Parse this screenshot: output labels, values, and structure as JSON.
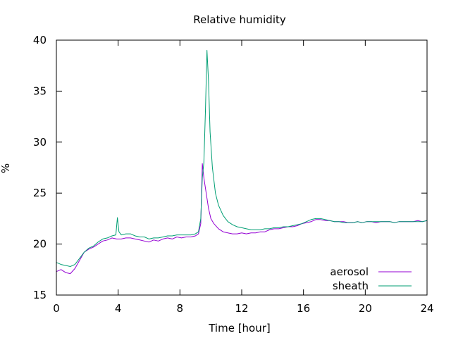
{
  "chart_data": {
    "type": "line",
    "title": "Relative humidity",
    "xlabel": "Time [hour]",
    "ylabel": "%",
    "xlim": [
      0,
      24
    ],
    "ylim": [
      15,
      40
    ],
    "xticks": [
      0,
      4,
      8,
      12,
      16,
      20,
      24
    ],
    "yticks": [
      15,
      20,
      25,
      30,
      35,
      40
    ],
    "grid": false,
    "legend_position": "bottom-right",
    "series": [
      {
        "name": "aerosol",
        "color": "#9400d3",
        "points": [
          [
            0.0,
            17.3
          ],
          [
            0.3,
            17.5
          ],
          [
            0.6,
            17.2
          ],
          [
            0.9,
            17.1
          ],
          [
            1.2,
            17.6
          ],
          [
            1.5,
            18.4
          ],
          [
            1.8,
            19.2
          ],
          [
            2.1,
            19.5
          ],
          [
            2.4,
            19.7
          ],
          [
            2.7,
            20.0
          ],
          [
            3.0,
            20.3
          ],
          [
            3.3,
            20.4
          ],
          [
            3.6,
            20.6
          ],
          [
            3.9,
            20.5
          ],
          [
            4.2,
            20.5
          ],
          [
            4.5,
            20.6
          ],
          [
            4.8,
            20.6
          ],
          [
            5.1,
            20.5
          ],
          [
            5.4,
            20.4
          ],
          [
            5.7,
            20.3
          ],
          [
            6.0,
            20.2
          ],
          [
            6.3,
            20.4
          ],
          [
            6.6,
            20.3
          ],
          [
            6.9,
            20.5
          ],
          [
            7.2,
            20.6
          ],
          [
            7.5,
            20.5
          ],
          [
            7.8,
            20.7
          ],
          [
            8.1,
            20.6
          ],
          [
            8.4,
            20.7
          ],
          [
            8.7,
            20.7
          ],
          [
            9.0,
            20.8
          ],
          [
            9.2,
            21.0
          ],
          [
            9.35,
            22.0
          ],
          [
            9.45,
            27.9
          ],
          [
            9.55,
            26.5
          ],
          [
            9.7,
            25.0
          ],
          [
            9.85,
            23.5
          ],
          [
            10.0,
            22.5
          ],
          [
            10.2,
            22.0
          ],
          [
            10.5,
            21.5
          ],
          [
            10.8,
            21.2
          ],
          [
            11.1,
            21.1
          ],
          [
            11.4,
            21.0
          ],
          [
            11.7,
            21.0
          ],
          [
            12.0,
            21.1
          ],
          [
            12.3,
            21.0
          ],
          [
            12.6,
            21.1
          ],
          [
            12.9,
            21.1
          ],
          [
            13.2,
            21.2
          ],
          [
            13.5,
            21.2
          ],
          [
            13.8,
            21.4
          ],
          [
            14.1,
            21.5
          ],
          [
            14.4,
            21.5
          ],
          [
            14.7,
            21.6
          ],
          [
            15.0,
            21.7
          ],
          [
            15.3,
            21.7
          ],
          [
            15.6,
            21.8
          ],
          [
            15.9,
            22.0
          ],
          [
            16.2,
            22.1
          ],
          [
            16.5,
            22.2
          ],
          [
            16.8,
            22.4
          ],
          [
            17.1,
            22.4
          ],
          [
            17.4,
            22.3
          ],
          [
            17.7,
            22.3
          ],
          [
            18.0,
            22.2
          ],
          [
            18.3,
            22.2
          ],
          [
            18.6,
            22.2
          ],
          [
            18.9,
            22.1
          ],
          [
            19.2,
            22.1
          ],
          [
            19.5,
            22.2
          ],
          [
            19.8,
            22.1
          ],
          [
            20.1,
            22.2
          ],
          [
            20.4,
            22.2
          ],
          [
            20.7,
            22.1
          ],
          [
            21.0,
            22.2
          ],
          [
            21.3,
            22.2
          ],
          [
            21.6,
            22.2
          ],
          [
            21.9,
            22.1
          ],
          [
            22.2,
            22.2
          ],
          [
            22.5,
            22.2
          ],
          [
            22.8,
            22.2
          ],
          [
            23.1,
            22.2
          ],
          [
            23.4,
            22.3
          ],
          [
            23.7,
            22.2
          ],
          [
            24.0,
            22.3
          ]
        ]
      },
      {
        "name": "sheath",
        "color": "#009e73",
        "points": [
          [
            0.0,
            18.2
          ],
          [
            0.3,
            18.0
          ],
          [
            0.6,
            17.9
          ],
          [
            0.9,
            17.8
          ],
          [
            1.2,
            18.0
          ],
          [
            1.5,
            18.6
          ],
          [
            1.8,
            19.2
          ],
          [
            2.1,
            19.6
          ],
          [
            2.4,
            19.8
          ],
          [
            2.7,
            20.2
          ],
          [
            3.0,
            20.5
          ],
          [
            3.3,
            20.6
          ],
          [
            3.6,
            20.8
          ],
          [
            3.85,
            20.9
          ],
          [
            3.95,
            22.6
          ],
          [
            4.05,
            21.2
          ],
          [
            4.2,
            20.9
          ],
          [
            4.5,
            21.0
          ],
          [
            4.8,
            21.0
          ],
          [
            5.1,
            20.8
          ],
          [
            5.4,
            20.7
          ],
          [
            5.7,
            20.7
          ],
          [
            6.0,
            20.5
          ],
          [
            6.3,
            20.6
          ],
          [
            6.6,
            20.6
          ],
          [
            6.9,
            20.7
          ],
          [
            7.2,
            20.8
          ],
          [
            7.5,
            20.8
          ],
          [
            7.8,
            20.9
          ],
          [
            8.1,
            20.9
          ],
          [
            8.4,
            20.9
          ],
          [
            8.7,
            20.9
          ],
          [
            9.0,
            21.0
          ],
          [
            9.2,
            21.2
          ],
          [
            9.35,
            22.5
          ],
          [
            9.45,
            26.5
          ],
          [
            9.55,
            28.0
          ],
          [
            9.65,
            33.0
          ],
          [
            9.75,
            39.0
          ],
          [
            9.85,
            36.0
          ],
          [
            9.95,
            31.0
          ],
          [
            10.1,
            27.5
          ],
          [
            10.3,
            25.0
          ],
          [
            10.5,
            23.8
          ],
          [
            10.8,
            22.8
          ],
          [
            11.1,
            22.2
          ],
          [
            11.4,
            21.9
          ],
          [
            11.7,
            21.7
          ],
          [
            12.0,
            21.6
          ],
          [
            12.3,
            21.5
          ],
          [
            12.6,
            21.4
          ],
          [
            12.9,
            21.4
          ],
          [
            13.2,
            21.4
          ],
          [
            13.5,
            21.5
          ],
          [
            13.8,
            21.5
          ],
          [
            14.1,
            21.6
          ],
          [
            14.4,
            21.6
          ],
          [
            14.7,
            21.7
          ],
          [
            15.0,
            21.7
          ],
          [
            15.3,
            21.8
          ],
          [
            15.6,
            21.9
          ],
          [
            15.9,
            22.0
          ],
          [
            16.2,
            22.2
          ],
          [
            16.5,
            22.4
          ],
          [
            16.8,
            22.5
          ],
          [
            17.1,
            22.5
          ],
          [
            17.4,
            22.4
          ],
          [
            17.7,
            22.3
          ],
          [
            18.0,
            22.2
          ],
          [
            18.3,
            22.2
          ],
          [
            18.6,
            22.1
          ],
          [
            18.9,
            22.1
          ],
          [
            19.2,
            22.1
          ],
          [
            19.5,
            22.2
          ],
          [
            19.8,
            22.1
          ],
          [
            20.1,
            22.2
          ],
          [
            20.4,
            22.2
          ],
          [
            20.7,
            22.2
          ],
          [
            21.0,
            22.2
          ],
          [
            21.3,
            22.2
          ],
          [
            21.6,
            22.2
          ],
          [
            21.9,
            22.1
          ],
          [
            22.2,
            22.2
          ],
          [
            22.5,
            22.2
          ],
          [
            22.8,
            22.2
          ],
          [
            23.1,
            22.2
          ],
          [
            23.4,
            22.2
          ],
          [
            23.7,
            22.2
          ],
          [
            24.0,
            22.3
          ]
        ]
      }
    ]
  }
}
